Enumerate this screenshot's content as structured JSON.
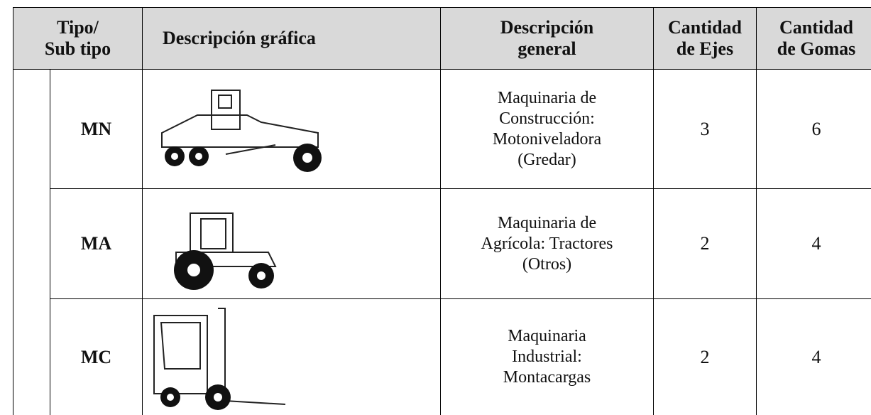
{
  "table": {
    "header": [
      [
        "Tipo/",
        "Sub tipo"
      ],
      [
        "Descripción gráfica"
      ],
      [
        "Descripción",
        "general"
      ],
      [
        "Cantidad",
        "de Ejes"
      ],
      [
        "Cantidad",
        "de Gomas"
      ]
    ],
    "rows": [
      {
        "code": "MN",
        "description": [
          "Maquinaria de",
          "Construcción:",
          "Motoniveladora",
          "(Gredar)"
        ],
        "axles": 3,
        "tires": 6
      },
      {
        "code": "MA",
        "description": [
          "Maquinaria de",
          "Agrícola: Tractores",
          "(Otros)"
        ],
        "axles": 2,
        "tires": 4
      },
      {
        "code": "MC",
        "description": [
          "Maquinaria",
          "Industrial:",
          "Montacargas"
        ],
        "axles": 2,
        "tires": 4
      }
    ]
  }
}
